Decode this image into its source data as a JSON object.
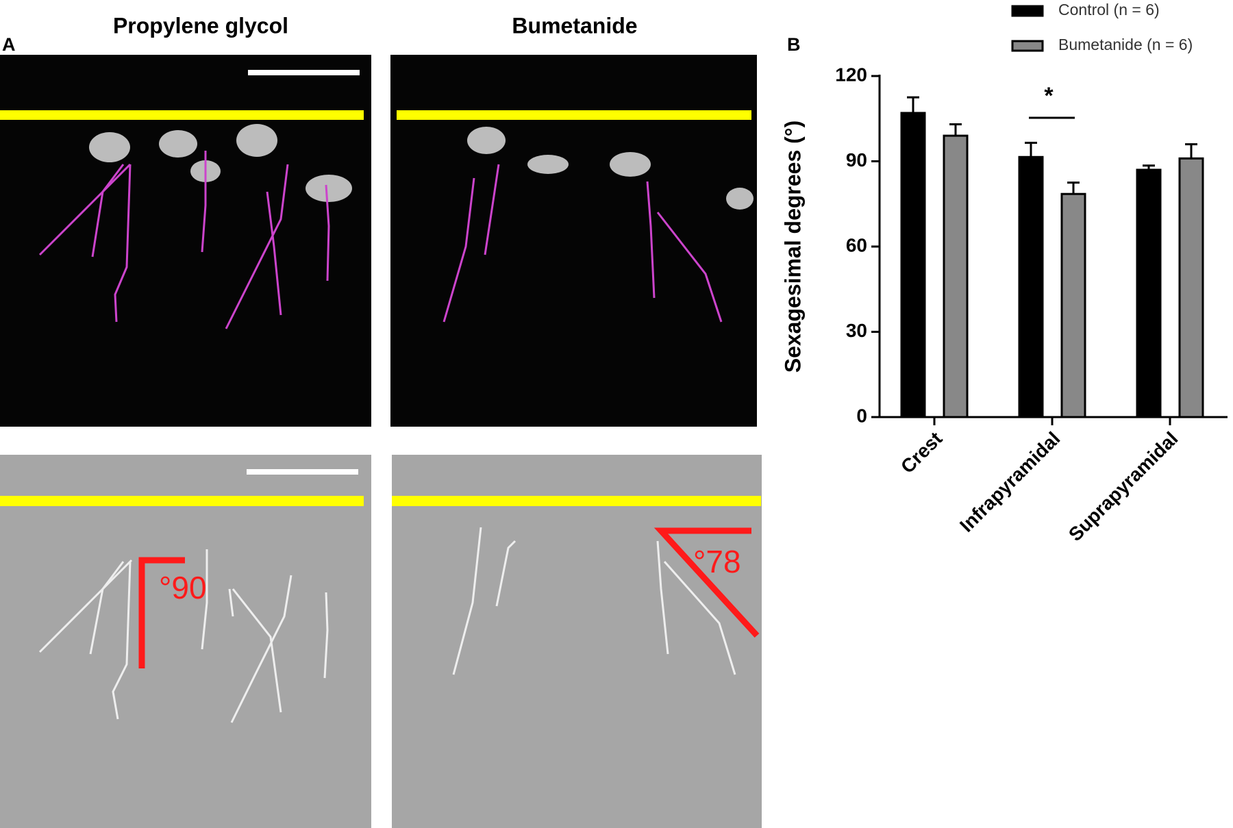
{
  "panel_a": {
    "label": "A",
    "columns": [
      "Propylene glycol",
      "Bumetanide"
    ],
    "angles": [
      "°90",
      "°78"
    ]
  },
  "chart_data": {
    "type": "bar",
    "label": "B",
    "ylabel": "Sexagesimal degrees (°)",
    "categories": [
      "Crest",
      "Infrapyramidal",
      "Suprapyramidal"
    ],
    "series": [
      {
        "name": "Control (n = 6)",
        "color": "#000000",
        "values": [
          107,
          91.5,
          87
        ],
        "errors": [
          5.5,
          5,
          1.5
        ]
      },
      {
        "name": "Bumetanide (n = 6)",
        "color": "#888888",
        "values": [
          99,
          78.5,
          91
        ],
        "errors": [
          4,
          4,
          5
        ]
      }
    ],
    "ylim": [
      0,
      120
    ],
    "yticks": [
      0,
      30,
      60,
      90,
      120
    ],
    "annotations": [
      "*"
    ],
    "legend": "top-right"
  }
}
